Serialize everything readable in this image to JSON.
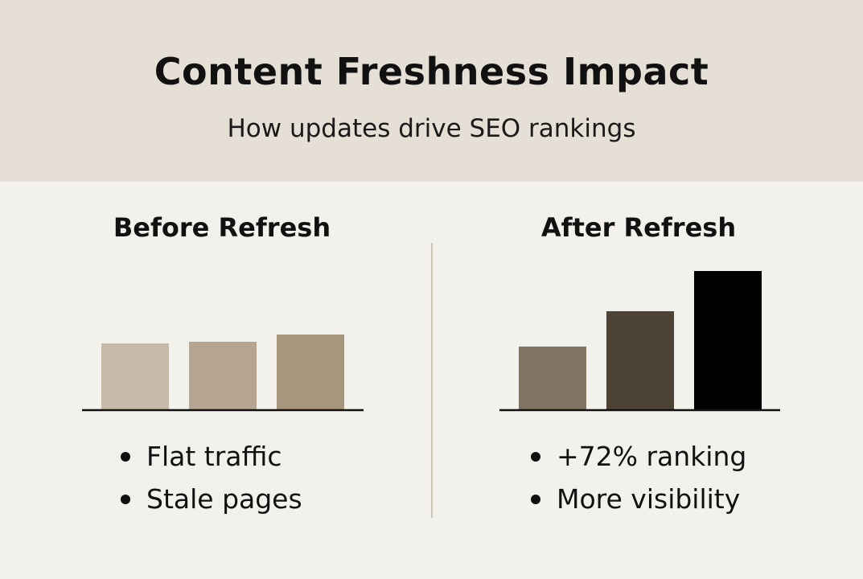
{
  "header": {
    "title": "Content Freshness Impact",
    "subtitle": "How updates drive SEO rankings"
  },
  "chart_data": [
    {
      "type": "bar",
      "title": "Before Refresh",
      "categories": [
        "",
        "",
        ""
      ],
      "values": [
        83,
        85,
        94
      ],
      "value_units": "relative bar height (no axis printed)",
      "colors": [
        "#c7baa9",
        "#b5a590",
        "#a6967b"
      ],
      "grid": false,
      "axes_labels": false
    },
    {
      "type": "bar",
      "title": "After Refresh",
      "categories": [
        "",
        "",
        ""
      ],
      "values": [
        79,
        123,
        173
      ],
      "value_units": "relative bar height (no axis printed)",
      "colors": [
        "#807362",
        "#4d4337",
        "#000000"
      ],
      "grid": false,
      "axes_labels": false
    }
  ],
  "before": {
    "bullets": [
      "Flat traffic",
      "Stale pages"
    ]
  },
  "after": {
    "bullets": [
      "+72% ranking",
      "More visibility"
    ]
  },
  "colors": {
    "header_bg": "#e6dfd5",
    "page_bg": "#f3f1ec",
    "divider": "#cfc6ba"
  }
}
